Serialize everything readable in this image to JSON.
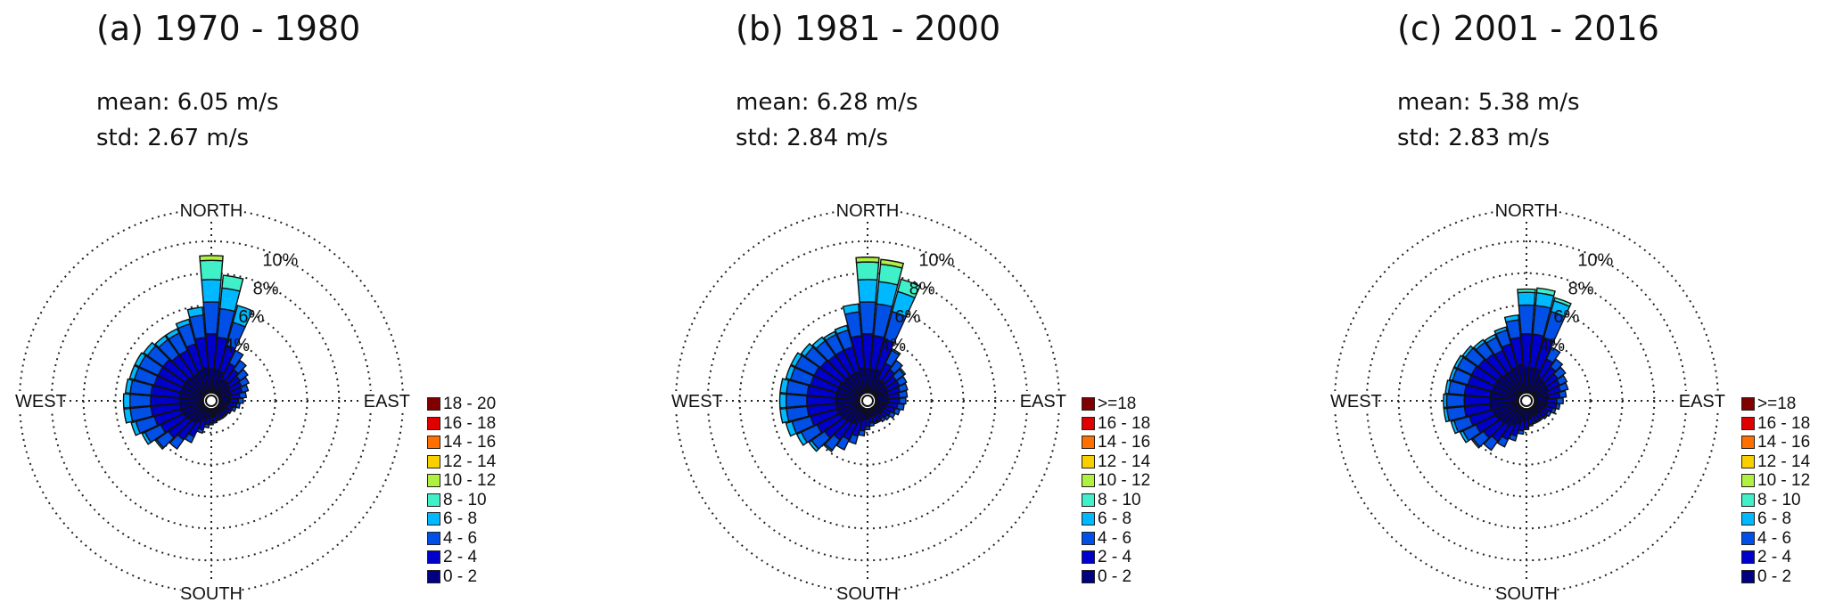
{
  "figure": {
    "compass": {
      "north": "NORTH",
      "south": "SOUTH",
      "east": "EAST",
      "west": "WEST"
    }
  },
  "legend_colors": [
    "#000080",
    "#0000cd",
    "#0050e8",
    "#00b8ff",
    "#40f0c8",
    "#b0f040",
    "#f8d000",
    "#ff7000",
    "#e00000",
    "#800000"
  ],
  "panels": [
    {
      "title": "(a) 1970 - 1980",
      "mean": "mean: 6.05 m/s",
      "std": "std: 2.67 m/s",
      "legend": [
        "18 - 20",
        "16 - 18",
        "14 - 16",
        "12 - 14",
        "10 - 12",
        "8 - 10",
        "6 - 8",
        "4 - 6",
        "2 - 4",
        "0 - 2"
      ]
    },
    {
      "title": "(b) 1981 - 2000",
      "mean": "mean: 6.28 m/s",
      "std": "std: 2.84 m/s",
      "legend": [
        ">=18",
        "16 - 18",
        "14 - 16",
        "12 - 14",
        "10 - 12",
        "8 - 10",
        "6 - 8",
        "4 - 6",
        "2 - 4",
        "0 - 2"
      ]
    },
    {
      "title": "(c) 2001 - 2016",
      "mean": "mean: 5.38 m/s",
      "std": "std: 2.83 m/s",
      "legend": [
        ">=18",
        "16 - 18",
        "14 - 16",
        "12 - 14",
        "10 - 12",
        "8 - 10",
        "6 - 8",
        "4 - 6",
        "2 - 4",
        "0 - 2"
      ]
    }
  ],
  "chart_data": [
    {
      "type": "wind-rose",
      "title": "(a) 1970 - 1980",
      "radial_ticks": [
        "2%",
        "4%",
        "6%",
        "8%",
        "10%"
      ],
      "radial_max": 12,
      "grid": true,
      "legend_position": "bottom-right",
      "sectors": [
        {
          "dir": 0,
          "total": 8.6,
          "comp": [
            1.5,
            2.2,
            2.0,
            1.4,
            1.2,
            0.3
          ]
        },
        {
          "dir": 10,
          "total": 7.4,
          "comp": [
            1.5,
            2.0,
            1.8,
            1.3,
            0.8
          ]
        },
        {
          "dir": 20,
          "total": 5.7,
          "comp": [
            1.4,
            1.7,
            1.5,
            1.1
          ]
        },
        {
          "dir": 30,
          "total": 3.0,
          "comp": [
            1.0,
            1.1,
            0.9
          ]
        },
        {
          "dir": 40,
          "total": 2.6,
          "comp": [
            1.0,
            0.9,
            0.7
          ]
        },
        {
          "dir": 50,
          "total": 2.3,
          "comp": [
            0.9,
            0.8,
            0.6
          ]
        },
        {
          "dir": 60,
          "total": 2.1,
          "comp": [
            0.8,
            0.8,
            0.5
          ]
        },
        {
          "dir": 70,
          "total": 1.9,
          "comp": [
            0.8,
            0.7,
            0.4
          ]
        },
        {
          "dir": 80,
          "total": 1.7,
          "comp": [
            0.7,
            0.6,
            0.4
          ]
        },
        {
          "dir": 90,
          "total": 1.5,
          "comp": [
            0.7,
            0.5,
            0.3
          ]
        },
        {
          "dir": 100,
          "total": 1.3,
          "comp": [
            0.6,
            0.5,
            0.2
          ]
        },
        {
          "dir": 110,
          "total": 1.1,
          "comp": [
            0.5,
            0.4,
            0.2
          ]
        },
        {
          "dir": 120,
          "total": 0.9,
          "comp": [
            0.5,
            0.3,
            0.1
          ]
        },
        {
          "dir": 130,
          "total": 0.8,
          "comp": [
            0.4,
            0.3,
            0.1
          ]
        },
        {
          "dir": 140,
          "total": 0.8,
          "comp": [
            0.4,
            0.3,
            0.1
          ]
        },
        {
          "dir": 150,
          "total": 0.8,
          "comp": [
            0.4,
            0.3,
            0.1
          ]
        },
        {
          "dir": 160,
          "total": 0.8,
          "comp": [
            0.4,
            0.3,
            0.1
          ]
        },
        {
          "dir": 170,
          "total": 0.9,
          "comp": [
            0.5,
            0.3,
            0.1
          ]
        },
        {
          "dir": 180,
          "total": 1.0,
          "comp": [
            0.5,
            0.4,
            0.1
          ]
        },
        {
          "dir": 190,
          "total": 1.2,
          "comp": [
            0.6,
            0.4,
            0.2
          ]
        },
        {
          "dir": 200,
          "total": 1.6,
          "comp": [
            0.8,
            0.6,
            0.2
          ]
        },
        {
          "dir": 210,
          "total": 2.4,
          "comp": [
            1.0,
            1.0,
            0.4
          ]
        },
        {
          "dir": 220,
          "total": 3.2,
          "comp": [
            1.2,
            1.3,
            0.7
          ]
        },
        {
          "dir": 230,
          "total": 3.8,
          "comp": [
            1.3,
            1.5,
            0.9,
            0.1
          ]
        },
        {
          "dir": 240,
          "total": 4.3,
          "comp": [
            1.4,
            1.6,
            1.1,
            0.2
          ]
        },
        {
          "dir": 250,
          "total": 4.7,
          "comp": [
            1.5,
            1.7,
            1.2,
            0.3
          ]
        },
        {
          "dir": 260,
          "total": 5.0,
          "comp": [
            1.5,
            1.8,
            1.3,
            0.4
          ]
        },
        {
          "dir": 270,
          "total": 5.0,
          "comp": [
            1.5,
            1.8,
            1.3,
            0.4
          ]
        },
        {
          "dir": 280,
          "total": 4.9,
          "comp": [
            1.5,
            1.8,
            1.3,
            0.3
          ]
        },
        {
          "dir": 290,
          "total": 4.8,
          "comp": [
            1.5,
            1.7,
            1.3,
            0.3
          ]
        },
        {
          "dir": 300,
          "total": 4.8,
          "comp": [
            1.5,
            1.7,
            1.3,
            0.3
          ]
        },
        {
          "dir": 310,
          "total": 4.7,
          "comp": [
            1.5,
            1.7,
            1.2,
            0.3
          ]
        },
        {
          "dir": 320,
          "total": 4.5,
          "comp": [
            1.4,
            1.6,
            1.2,
            0.3
          ]
        },
        {
          "dir": 330,
          "total": 4.5,
          "comp": [
            1.4,
            1.6,
            1.2,
            0.3
          ]
        },
        {
          "dir": 340,
          "total": 4.8,
          "comp": [
            1.5,
            1.7,
            1.3,
            0.3
          ]
        },
        {
          "dir": 350,
          "total": 5.4,
          "comp": [
            1.6,
            1.9,
            1.4,
            0.5
          ]
        }
      ]
    },
    {
      "type": "wind-rose",
      "title": "(b) 1981 - 2000",
      "radial_ticks": [
        "2%",
        "4%",
        "6%",
        "8%",
        "10%"
      ],
      "radial_max": 12,
      "grid": true,
      "legend_position": "bottom-right",
      "sectors": [
        {
          "dir": 0,
          "total": 8.5,
          "comp": [
            1.5,
            2.2,
            2.0,
            1.4,
            1.1,
            0.3
          ]
        },
        {
          "dir": 10,
          "total": 8.4,
          "comp": [
            1.5,
            2.1,
            2.0,
            1.4,
            1.1,
            0.3
          ]
        },
        {
          "dir": 20,
          "total": 7.4,
          "comp": [
            1.5,
            2.0,
            1.8,
            1.3,
            0.8
          ]
        },
        {
          "dir": 30,
          "total": 3.1,
          "comp": [
            1.0,
            1.1,
            0.9,
            0.1
          ]
        },
        {
          "dir": 40,
          "total": 2.6,
          "comp": [
            1.0,
            0.9,
            0.7
          ]
        },
        {
          "dir": 50,
          "total": 2.4,
          "comp": [
            0.9,
            0.8,
            0.6,
            0.1
          ]
        },
        {
          "dir": 60,
          "total": 2.2,
          "comp": [
            0.9,
            0.8,
            0.5
          ]
        },
        {
          "dir": 70,
          "total": 2.1,
          "comp": [
            0.8,
            0.8,
            0.5
          ]
        },
        {
          "dir": 80,
          "total": 2.0,
          "comp": [
            0.8,
            0.7,
            0.5
          ]
        },
        {
          "dir": 90,
          "total": 1.9,
          "comp": [
            0.8,
            0.7,
            0.4
          ]
        },
        {
          "dir": 100,
          "total": 1.8,
          "comp": [
            0.7,
            0.7,
            0.4
          ]
        },
        {
          "dir": 110,
          "total": 1.6,
          "comp": [
            0.7,
            0.6,
            0.3
          ]
        },
        {
          "dir": 120,
          "total": 1.4,
          "comp": [
            0.6,
            0.5,
            0.3
          ]
        },
        {
          "dir": 130,
          "total": 1.2,
          "comp": [
            0.6,
            0.4,
            0.2
          ]
        },
        {
          "dir": 140,
          "total": 1.1,
          "comp": [
            0.5,
            0.4,
            0.2
          ]
        },
        {
          "dir": 150,
          "total": 1.0,
          "comp": [
            0.5,
            0.4,
            0.1
          ]
        },
        {
          "dir": 160,
          "total": 1.0,
          "comp": [
            0.5,
            0.4,
            0.1
          ]
        },
        {
          "dir": 170,
          "total": 1.1,
          "comp": [
            0.5,
            0.4,
            0.2
          ]
        },
        {
          "dir": 180,
          "total": 1.3,
          "comp": [
            0.6,
            0.5,
            0.2
          ]
        },
        {
          "dir": 190,
          "total": 1.7,
          "comp": [
            0.7,
            0.7,
            0.3
          ]
        },
        {
          "dir": 200,
          "total": 2.3,
          "comp": [
            0.9,
            0.9,
            0.5
          ]
        },
        {
          "dir": 210,
          "total": 2.9,
          "comp": [
            1.1,
            1.1,
            0.7
          ]
        },
        {
          "dir": 220,
          "total": 3.4,
          "comp": [
            1.2,
            1.3,
            0.8,
            0.1
          ]
        },
        {
          "dir": 230,
          "total": 4.0,
          "comp": [
            1.3,
            1.5,
            1.0,
            0.2
          ]
        },
        {
          "dir": 240,
          "total": 4.4,
          "comp": [
            1.4,
            1.6,
            1.1,
            0.3
          ]
        },
        {
          "dir": 250,
          "total": 4.8,
          "comp": [
            1.5,
            1.7,
            1.2,
            0.4
          ]
        },
        {
          "dir": 260,
          "total": 5.0,
          "comp": [
            1.5,
            1.8,
            1.3,
            0.4
          ]
        },
        {
          "dir": 270,
          "total": 5.0,
          "comp": [
            1.5,
            1.8,
            1.3,
            0.4
          ]
        },
        {
          "dir": 280,
          "total": 5.0,
          "comp": [
            1.5,
            1.8,
            1.3,
            0.4
          ]
        },
        {
          "dir": 290,
          "total": 4.8,
          "comp": [
            1.5,
            1.7,
            1.3,
            0.3
          ]
        },
        {
          "dir": 300,
          "total": 4.8,
          "comp": [
            1.5,
            1.7,
            1.3,
            0.3
          ]
        },
        {
          "dir": 310,
          "total": 4.6,
          "comp": [
            1.4,
            1.7,
            1.2,
            0.3
          ]
        },
        {
          "dir": 320,
          "total": 4.4,
          "comp": [
            1.4,
            1.6,
            1.1,
            0.3
          ]
        },
        {
          "dir": 330,
          "total": 4.3,
          "comp": [
            1.4,
            1.6,
            1.1,
            0.2
          ]
        },
        {
          "dir": 340,
          "total": 4.4,
          "comp": [
            1.4,
            1.6,
            1.1,
            0.3
          ]
        },
        {
          "dir": 350,
          "total": 5.6,
          "comp": [
            1.6,
            2.0,
            1.5,
            0.5
          ]
        }
      ]
    },
    {
      "type": "wind-rose",
      "title": "(c) 2001 - 2016",
      "radial_ticks": [
        "2%",
        "4%",
        "6%",
        "8%",
        "10%"
      ],
      "radial_max": 12,
      "grid": true,
      "legend_position": "bottom-right",
      "sectors": [
        {
          "dir": 0,
          "total": 6.5,
          "comp": [
            1.6,
            2.1,
            1.8,
            0.8,
            0.2
          ]
        },
        {
          "dir": 10,
          "total": 6.6,
          "comp": [
            1.6,
            2.1,
            1.8,
            0.8,
            0.3
          ]
        },
        {
          "dir": 20,
          "total": 6.2,
          "comp": [
            1.6,
            2.0,
            1.7,
            0.7,
            0.2
          ]
        },
        {
          "dir": 30,
          "total": 3.2,
          "comp": [
            1.2,
            1.2,
            0.8
          ]
        },
        {
          "dir": 40,
          "total": 2.7,
          "comp": [
            1.1,
            1.0,
            0.6
          ]
        },
        {
          "dir": 50,
          "total": 2.5,
          "comp": [
            1.0,
            0.9,
            0.6
          ]
        },
        {
          "dir": 60,
          "total": 2.3,
          "comp": [
            1.0,
            0.8,
            0.5
          ]
        },
        {
          "dir": 70,
          "total": 2.2,
          "comp": [
            0.9,
            0.8,
            0.5
          ]
        },
        {
          "dir": 80,
          "total": 2.0,
          "comp": [
            0.9,
            0.7,
            0.4
          ]
        },
        {
          "dir": 90,
          "total": 1.8,
          "comp": [
            0.8,
            0.6,
            0.4
          ]
        },
        {
          "dir": 100,
          "total": 1.6,
          "comp": [
            0.8,
            0.6,
            0.2
          ]
        },
        {
          "dir": 110,
          "total": 1.4,
          "comp": [
            0.7,
            0.5,
            0.2
          ]
        },
        {
          "dir": 120,
          "total": 1.2,
          "comp": [
            0.6,
            0.4,
            0.2
          ]
        },
        {
          "dir": 130,
          "total": 1.1,
          "comp": [
            0.6,
            0.4,
            0.1
          ]
        },
        {
          "dir": 140,
          "total": 1.0,
          "comp": [
            0.5,
            0.4,
            0.1
          ]
        },
        {
          "dir": 150,
          "total": 1.0,
          "comp": [
            0.5,
            0.4,
            0.1
          ]
        },
        {
          "dir": 160,
          "total": 1.0,
          "comp": [
            0.5,
            0.4,
            0.1
          ]
        },
        {
          "dir": 170,
          "total": 1.1,
          "comp": [
            0.6,
            0.4,
            0.1
          ]
        },
        {
          "dir": 180,
          "total": 1.3,
          "comp": [
            0.7,
            0.5,
            0.1
          ]
        },
        {
          "dir": 190,
          "total": 1.6,
          "comp": [
            0.8,
            0.6,
            0.2
          ]
        },
        {
          "dir": 200,
          "total": 2.1,
          "comp": [
            1.0,
            0.8,
            0.3
          ]
        },
        {
          "dir": 210,
          "total": 2.7,
          "comp": [
            1.2,
            1.0,
            0.5
          ]
        },
        {
          "dir": 220,
          "total": 3.3,
          "comp": [
            1.4,
            1.2,
            0.7
          ]
        },
        {
          "dir": 230,
          "total": 3.7,
          "comp": [
            1.5,
            1.3,
            0.8,
            0.1
          ]
        },
        {
          "dir": 240,
          "total": 4.1,
          "comp": [
            1.6,
            1.4,
            0.9,
            0.2
          ]
        },
        {
          "dir": 250,
          "total": 4.4,
          "comp": [
            1.7,
            1.5,
            1.0,
            0.2
          ]
        },
        {
          "dir": 260,
          "total": 4.7,
          "comp": [
            1.8,
            1.6,
            1.1,
            0.2
          ]
        },
        {
          "dir": 270,
          "total": 4.7,
          "comp": [
            1.8,
            1.6,
            1.1,
            0.2
          ]
        },
        {
          "dir": 280,
          "total": 4.6,
          "comp": [
            1.8,
            1.6,
            1.0,
            0.2
          ]
        },
        {
          "dir": 290,
          "total": 4.5,
          "comp": [
            1.7,
            1.6,
            1.0,
            0.2
          ]
        },
        {
          "dir": 300,
          "total": 4.5,
          "comp": [
            1.7,
            1.6,
            1.0,
            0.2
          ]
        },
        {
          "dir": 310,
          "total": 4.4,
          "comp": [
            1.7,
            1.5,
            1.0,
            0.2
          ]
        },
        {
          "dir": 320,
          "total": 4.2,
          "comp": [
            1.6,
            1.5,
            0.9,
            0.2
          ]
        },
        {
          "dir": 330,
          "total": 4.1,
          "comp": [
            1.6,
            1.4,
            0.9,
            0.2
          ]
        },
        {
          "dir": 340,
          "total": 4.3,
          "comp": [
            1.7,
            1.5,
            0.9,
            0.2
          ]
        },
        {
          "dir": 350,
          "total": 4.9,
          "comp": [
            1.8,
            1.7,
            1.1,
            0.3
          ]
        }
      ]
    }
  ]
}
